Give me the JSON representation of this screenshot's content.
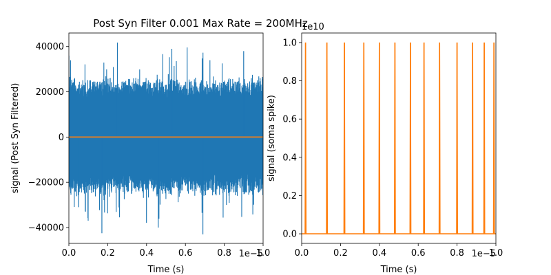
{
  "chart_data": [
    {
      "type": "line",
      "title": "Post Syn Filter 0.001 Max Rate = 200MHz",
      "xlabel": "Time (s)",
      "ylabel": "signal (Post Syn Filtered)",
      "x_scale_label": "1e−5",
      "xlim": [
        0,
        1.0
      ],
      "ylim": [
        -47000,
        46000
      ],
      "xticks": [
        0.0,
        0.2,
        0.4,
        0.6,
        0.8,
        1.0
      ],
      "xtick_labels": [
        "0.0",
        "0.2",
        "0.4",
        "0.6",
        "0.8",
        "1.0"
      ],
      "yticks": [
        -40000,
        -20000,
        0,
        20000,
        40000
      ],
      "ytick_labels": [
        "−40000",
        "−20000",
        "0",
        "20000",
        "40000"
      ],
      "colors": {
        "noise": "#1f77b4",
        "flat": "#ff7f0e"
      },
      "series": [
        {
          "style": "noise",
          "approx_envelope": {
            "high": 27000,
            "low": -27000,
            "max": 41800,
            "min": -43000,
            "burst_max": 41000
          },
          "representative_peaks": [
            {
              "x": 0.0,
              "y": 36000
            },
            {
              "x": 0.05,
              "y": -31000
            },
            {
              "x": 0.17,
              "y": -42500
            },
            {
              "x": 0.25,
              "y": 41800
            },
            {
              "x": 0.46,
              "y": -40000
            },
            {
              "x": 0.53,
              "y": 39000
            },
            {
              "x": 0.69,
              "y": -43000
            },
            {
              "x": 0.9,
              "y": 38000
            }
          ]
        },
        {
          "style": "flat",
          "x": [
            0.0,
            1.0
          ],
          "y": [
            0,
            0
          ]
        }
      ]
    },
    {
      "type": "line",
      "title": "",
      "xlabel": "Time (s)",
      "ylabel": "signal (soma spike)",
      "x_scale_label": "1e−5",
      "y_scale_label": "1e10",
      "xlim": [
        0,
        1.0
      ],
      "ylim": [
        -0.05,
        1.05
      ],
      "xticks": [
        0.0,
        0.2,
        0.4,
        0.6,
        0.8,
        1.0
      ],
      "xtick_labels": [
        "0.0",
        "0.2",
        "0.4",
        "0.6",
        "0.8",
        "1.0"
      ],
      "yticks": [
        0.0,
        0.2,
        0.4,
        0.6,
        0.8,
        1.0
      ],
      "ytick_labels": [
        "0.0",
        "0.2",
        "0.4",
        "0.6",
        "0.8",
        "1.0"
      ],
      "color": "#ff7f0e",
      "series": [
        {
          "spike_times": [
            0.02,
            0.13,
            0.22,
            0.32,
            0.4,
            0.48,
            0.56,
            0.63,
            0.71,
            0.8,
            0.88,
            0.94,
            0.99
          ],
          "spike_height": 1.0,
          "baseline": 0.0
        }
      ]
    }
  ]
}
